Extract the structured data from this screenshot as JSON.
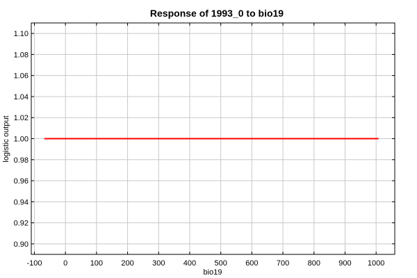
{
  "chart_data": {
    "type": "line",
    "title": "Response of 1993_0 to bio19",
    "xlabel": "bio19",
    "ylabel": "logistic output",
    "xlim": [
      -110,
      1060
    ],
    "ylim": [
      0.89,
      1.11
    ],
    "x_ticks": [
      -100,
      0,
      100,
      200,
      300,
      400,
      500,
      600,
      700,
      800,
      900,
      1000
    ],
    "y_ticks": [
      0.9,
      0.92,
      0.94,
      0.96,
      0.98,
      1.0,
      1.02,
      1.04,
      1.06,
      1.08,
      1.1
    ],
    "x_tick_labels": [
      "-100",
      "0",
      "100",
      "200",
      "300",
      "400",
      "500",
      "600",
      "700",
      "800",
      "900",
      "1000"
    ],
    "y_tick_labels": [
      "0.90",
      "0.92",
      "0.94",
      "0.96",
      "0.98",
      "1.00",
      "1.02",
      "1.04",
      "1.06",
      "1.08",
      "1.10"
    ],
    "grid": true,
    "series": [
      {
        "color": "#ff0000",
        "x": [
          -68,
          1008
        ],
        "y": [
          1.0,
          1.0
        ]
      }
    ]
  }
}
